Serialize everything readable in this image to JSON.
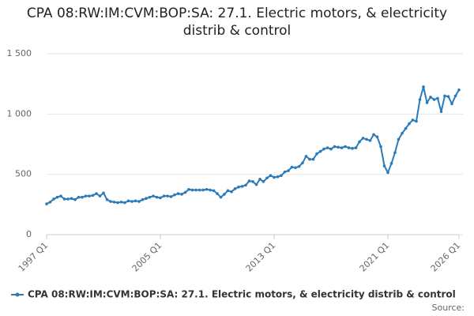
{
  "chart_data": {
    "type": "line",
    "title": "CPA 08:RW:IM:CVM:BOP:SA: 27.1. Electric motors, & electricity distrib & control",
    "source": "Source:",
    "categories": [
      "1997 Q1",
      null,
      null,
      null,
      null,
      null,
      null,
      null,
      null,
      null,
      null,
      null,
      null,
      null,
      null,
      null,
      null,
      null,
      null,
      null,
      null,
      null,
      null,
      null,
      null,
      null,
      null,
      null,
      null,
      null,
      null,
      null,
      "2005 Q1",
      null,
      null,
      null,
      null,
      null,
      null,
      null,
      null,
      null,
      null,
      null,
      null,
      null,
      null,
      null,
      null,
      null,
      null,
      null,
      null,
      null,
      null,
      null,
      null,
      null,
      null,
      null,
      null,
      null,
      null,
      null,
      "2013 Q1",
      null,
      null,
      null,
      null,
      null,
      null,
      null,
      null,
      null,
      null,
      null,
      null,
      null,
      null,
      null,
      null,
      null,
      null,
      null,
      null,
      null,
      null,
      null,
      null,
      null,
      null,
      null,
      null,
      null,
      null,
      null,
      "2021 Q1",
      null,
      null,
      null,
      null,
      null,
      null,
      null,
      null,
      null,
      null,
      null,
      null,
      null,
      null,
      null,
      null,
      null,
      null,
      null,
      "2026 Q1"
    ],
    "series": [
      {
        "name": "CPA 08:RW:IM:CVM:BOP:SA: 27.1. Electric motors, & electricity distrib & control",
        "color": "#2b7bb9",
        "values": [
          255,
          270,
          295,
          310,
          320,
          295,
          295,
          300,
          290,
          310,
          310,
          320,
          320,
          325,
          340,
          320,
          345,
          290,
          275,
          270,
          265,
          270,
          265,
          280,
          275,
          280,
          275,
          290,
          300,
          310,
          320,
          310,
          305,
          320,
          320,
          315,
          330,
          340,
          335,
          350,
          375,
          370,
          370,
          370,
          370,
          375,
          370,
          365,
          340,
          310,
          335,
          365,
          355,
          380,
          395,
          400,
          410,
          445,
          440,
          415,
          460,
          440,
          470,
          490,
          475,
          480,
          490,
          520,
          530,
          560,
          555,
          565,
          595,
          650,
          625,
          625,
          670,
          690,
          710,
          720,
          710,
          730,
          725,
          720,
          730,
          720,
          715,
          720,
          770,
          800,
          790,
          780,
          830,
          810,
          730,
          570,
          515,
          590,
          680,
          790,
          840,
          880,
          920,
          950,
          940,
          1120,
          1225,
          1095,
          1140,
          1120,
          1130,
          1020,
          1150,
          1145,
          1085,
          1150,
          1200
        ]
      }
    ],
    "ylim": [
      0,
      1500
    ],
    "yticks": [
      0,
      500,
      {
        "value": 1000,
        "label": "1 000"
      },
      {
        "value": 1500,
        "label": "1 500"
      }
    ],
    "grid": true
  }
}
